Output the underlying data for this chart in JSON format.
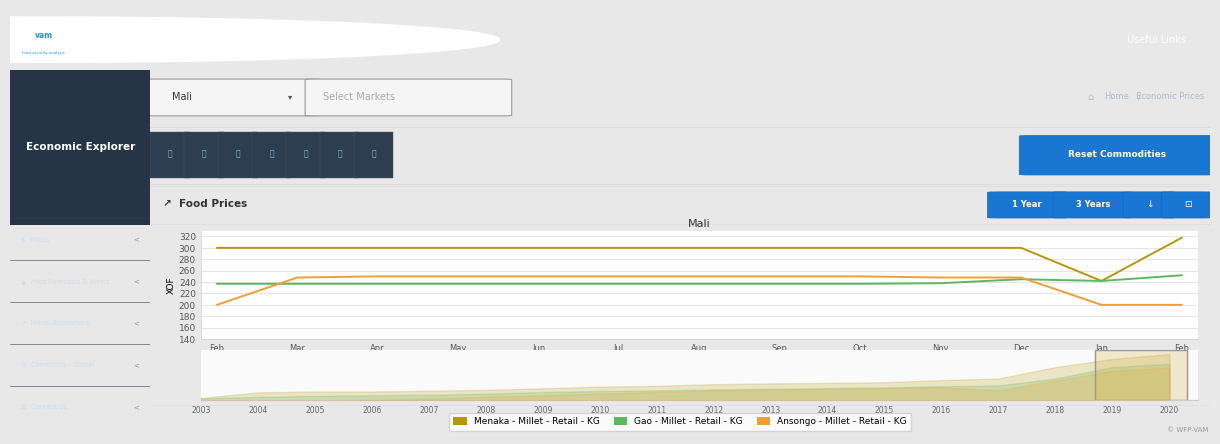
{
  "title": "Mali",
  "ylabel": "XOF",
  "header_blue": "#2196F3",
  "nav_dark": "#1e2a35",
  "nav_title_bg": "#263545",
  "toolbar_bg": "#f0f0f0",
  "content_bg": "#ffffff",
  "separator_color": "#cccccc",
  "main_xlabels": [
    "Feb\n2019",
    "Mar\n2019",
    "Apr\n2019",
    "May\n2019",
    "Jun\n2019",
    "Jul\n2019",
    "Aug\n2019",
    "Sep\n2019",
    "Oct\n2019",
    "Nov\n2019",
    "Dec\n2019",
    "Jan\n2020",
    "Feb\n2020"
  ],
  "main_xtick_pos": [
    0,
    1,
    2,
    3,
    4,
    5,
    6,
    7,
    8,
    9,
    10,
    11,
    12
  ],
  "ylim": [
    140,
    330
  ],
  "yticks": [
    140,
    160,
    180,
    200,
    220,
    240,
    260,
    280,
    300,
    320
  ],
  "menaka_color": "#b8960c",
  "gao_color": "#5cb85c",
  "ansongo_color": "#f0a030",
  "menaka_main": [
    300,
    300,
    300,
    300,
    300,
    300,
    300,
    300,
    300,
    300,
    300,
    242,
    318
  ],
  "gao_main": [
    237,
    237,
    237,
    237,
    237,
    237,
    237,
    237,
    237,
    238,
    245,
    242,
    252
  ],
  "ansongo_main": [
    200,
    248,
    250,
    250,
    250,
    250,
    250,
    250,
    250,
    248,
    248,
    200,
    200
  ],
  "mini_years": [
    2003,
    2004,
    2005,
    2006,
    2007,
    2008,
    2009,
    2010,
    2011,
    2012,
    2013,
    2014,
    2015,
    2016,
    2017,
    2018,
    2019,
    2020
  ],
  "mini_menaka": [
    15,
    50,
    55,
    55,
    60,
    65,
    75,
    85,
    90,
    100,
    105,
    108,
    112,
    125,
    135,
    205,
    255,
    285
  ],
  "mini_gao": [
    12,
    22,
    28,
    32,
    35,
    42,
    52,
    58,
    62,
    68,
    72,
    76,
    80,
    88,
    92,
    135,
    205,
    225
  ],
  "mini_ansongo": [
    0,
    0,
    0,
    5,
    12,
    22,
    32,
    42,
    52,
    62,
    66,
    72,
    76,
    82,
    62,
    122,
    182,
    202
  ],
  "legend_items": [
    {
      "label": "Menaka - Millet - Retail - KG",
      "color": "#b8960c"
    },
    {
      "label": "Gao - Millet - Retail - KG",
      "color": "#5cb85c"
    },
    {
      "label": "Ansongo - Millet - Retail - KG",
      "color": "#f0a030"
    }
  ],
  "ui_title": "Food Prices",
  "copyright": "© WFP-VAM",
  "top_bar_color": "#2196F3",
  "left_nav_color": "#1e2a35",
  "page_title": "Economic Explorer",
  "dropdown_text": "Mali",
  "select_markets": "Select Markets",
  "useful_links": "Useful Links",
  "reset_btn": "Reset Commodities",
  "btn_1y": "1 Year",
  "btn_3y": "3 Years",
  "breadcrumb_home": "Home",
  "breadcrumb_page": "Economic Prices"
}
